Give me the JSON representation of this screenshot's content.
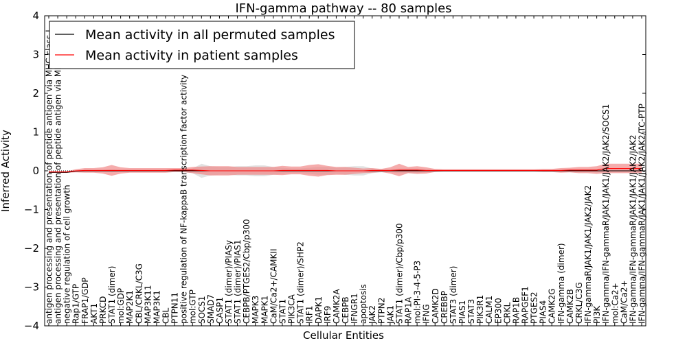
{
  "chart_data": {
    "type": "line",
    "title": "IFN-gamma pathway -- 80 samples",
    "xlabel": "Cellular Entities",
    "ylabel": "Inferred Activity",
    "ylim": [
      -4,
      4
    ],
    "yticks": [
      "4",
      "3",
      "2",
      "1",
      "0",
      "−1",
      "−2",
      "−3",
      "−4"
    ],
    "grid": false,
    "legend_position": "top-left",
    "categories": [
      "antigen processing and presentation of peptide antigen via MHC class I",
      "antigen processing and presentation of peptide antigen via MHC class II",
      "negative regulation of cell growth",
      "Rap1/GTP",
      "FRAP1/GDP",
      "AKT1",
      "PRKCD",
      "STAT1 (dimer)",
      "mol:GDP",
      "MAP2K1",
      "CBL/CRKL/C3G",
      "MAP3K11",
      "MAP3K1",
      "CBL",
      "PTPN11",
      "positive regulation of NF-kappaB transcription factor activity",
      "mol:GTP",
      "SOCS1",
      "SMAD7",
      "CASP1",
      "STAT1 (dimer)/PIASy",
      "STAT1 (dimer)/PIAS1",
      "CEBPB/PTGES2/Cbp/p300",
      "MAPK3",
      "MAPK1",
      "CaM/Ca2+/CAMKII",
      "STAT1",
      "PIK3CA",
      "STAT1 (dimer)/SHP2",
      "IRF1",
      "DAPK1",
      "IRF9",
      "CAMK2A",
      "CEBPB",
      "IFNGR1",
      "apoptosis",
      "JAK2",
      "PTPN2",
      "JAK1",
      "STAT1 (dimer)/Cbp/p300",
      "RAP1A",
      "mol:PI-3-4-5-P3",
      "IFNG",
      "CAMK2D",
      "CREBBP",
      "STAT3 (dimer)",
      "PIAS1",
      "STAT3",
      "PIK3R1",
      "CALM1",
      "EP300",
      "CRKL",
      "RAP1B",
      "RAPGEF1",
      "PTGES2",
      "PIAS4",
      "CAMK2G",
      "IFN-gamma (dimer)",
      "CAMK2B",
      "CRKL/C3G",
      "IFN-gammaR/JAK1/JAK1/JAK2/JAK2",
      "PI3K",
      "IFN-gamma/IFN-gammaR/JAK1/JAK1/JAK2/JAK2/SOCS1",
      "mol:Ca2+",
      "CaM/Ca2+",
      "IFN-gamma/IFN-gammaR/JAK1/JAK1/JAK2/JAK2",
      "IFN-gamma/IFN-gammaR/JAK1/JAK1/JAK2/JAK2/TC-PTP"
    ],
    "series": [
      {
        "name": "Mean activity in all permuted samples",
        "color": "#000000",
        "band_color": "#bdbdbd",
        "values": [
          -0.04,
          -0.04,
          -0.04,
          -0.01,
          0.0,
          0.0,
          0.0,
          0.0,
          0.0,
          0.0,
          0.0,
          0.0,
          0.0,
          0.0,
          0.0,
          0.0,
          0.0,
          0.0,
          0.0,
          0.0,
          0.0,
          0.0,
          0.0,
          0.0,
          0.0,
          0.0,
          0.0,
          0.0,
          0.0,
          0.0,
          0.0,
          0.0,
          0.0,
          0.0,
          0.0,
          0.0,
          0.0,
          0.0,
          0.0,
          0.0,
          0.0,
          0.0,
          0.0,
          0.0,
          0.0,
          0.0,
          0.0,
          0.0,
          0.0,
          0.0,
          0.0,
          0.0,
          0.0,
          0.0,
          0.0,
          0.0,
          0.0,
          0.0,
          0.0,
          0.0,
          0.0,
          0.0,
          0.0,
          0.0,
          0.0,
          0.0,
          0.0
        ],
        "band": [
          0.01,
          0.01,
          0.01,
          0.01,
          0.02,
          0.02,
          0.02,
          0.04,
          0.02,
          0.02,
          0.02,
          0.02,
          0.02,
          0.02,
          0.02,
          0.04,
          0.06,
          0.18,
          0.12,
          0.1,
          0.1,
          0.12,
          0.12,
          0.14,
          0.14,
          0.1,
          0.08,
          0.06,
          0.06,
          0.08,
          0.1,
          0.1,
          0.08,
          0.1,
          0.12,
          0.12,
          0.06,
          0.04,
          0.04,
          0.06,
          0.06,
          0.06,
          0.04,
          0.02,
          0.02,
          0.02,
          0.02,
          0.02,
          0.02,
          0.02,
          0.02,
          0.02,
          0.02,
          0.02,
          0.02,
          0.02,
          0.02,
          0.03,
          0.03,
          0.03,
          0.03,
          0.04,
          0.04,
          0.03,
          0.03,
          0.03,
          0.03
        ]
      },
      {
        "name": "Mean activity in patient samples",
        "color": "#ff0000",
        "band_color": "#f08080",
        "values": [
          -0.03,
          -0.03,
          -0.03,
          0.0,
          0.01,
          0.01,
          0.01,
          0.01,
          0.01,
          0.01,
          0.01,
          0.01,
          0.01,
          0.01,
          0.02,
          0.02,
          0.02,
          0.01,
          0.0,
          0.0,
          0.0,
          0.0,
          0.0,
          0.0,
          0.0,
          0.0,
          0.01,
          0.01,
          0.01,
          0.01,
          0.01,
          0.01,
          0.0,
          0.0,
          0.0,
          0.0,
          0.01,
          0.01,
          0.01,
          0.02,
          0.02,
          0.02,
          0.01,
          0.01,
          0.01,
          0.01,
          0.01,
          0.01,
          0.01,
          0.01,
          0.01,
          0.01,
          0.01,
          0.01,
          0.01,
          0.01,
          0.01,
          0.01,
          0.02,
          0.02,
          0.02,
          0.02,
          0.06,
          0.06,
          0.06,
          0.06,
          0.06
        ],
        "band": [
          0.02,
          0.02,
          0.02,
          0.04,
          0.06,
          0.06,
          0.08,
          0.14,
          0.08,
          0.06,
          0.06,
          0.06,
          0.06,
          0.06,
          0.05,
          0.05,
          0.08,
          0.1,
          0.12,
          0.12,
          0.12,
          0.1,
          0.1,
          0.1,
          0.1,
          0.1,
          0.12,
          0.1,
          0.1,
          0.14,
          0.16,
          0.12,
          0.1,
          0.1,
          0.08,
          0.06,
          0.06,
          0.04,
          0.08,
          0.16,
          0.08,
          0.1,
          0.08,
          0.04,
          0.03,
          0.03,
          0.03,
          0.03,
          0.03,
          0.03,
          0.03,
          0.03,
          0.03,
          0.03,
          0.03,
          0.04,
          0.04,
          0.06,
          0.06,
          0.08,
          0.08,
          0.1,
          0.12,
          0.12,
          0.12,
          0.12,
          0.12
        ]
      }
    ]
  }
}
